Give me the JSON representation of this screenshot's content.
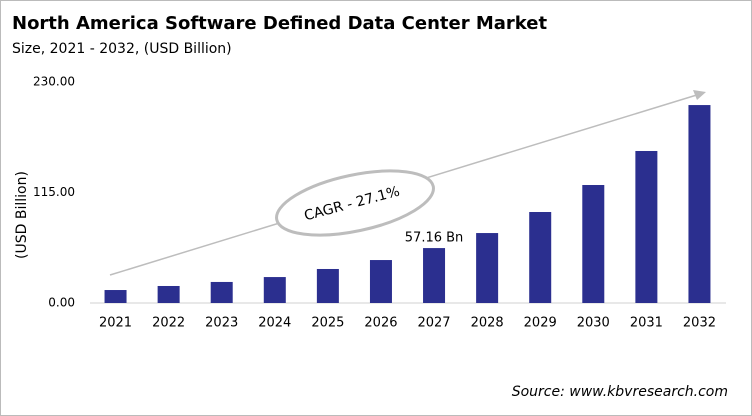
{
  "chart_data": {
    "type": "bar",
    "title": "North America Software Defined Data Center Market",
    "subtitle": "Size, 2021 - 2032, (USD Billion)",
    "y_label": "(USD Billion)",
    "annotation": "CAGR - 27.1%",
    "source": "Source: www.kbvresearch.com",
    "categories": [
      "2021",
      "2022",
      "2023",
      "2024",
      "2025",
      "2026",
      "2027",
      "2028",
      "2029",
      "2030",
      "2031",
      "2032"
    ],
    "values": [
      13.5,
      17.7,
      21.9,
      27.0,
      35.4,
      44.7,
      57.16,
      72.8,
      94.7,
      122.8,
      158.2,
      206.0
    ],
    "value_labels": [
      null,
      null,
      null,
      null,
      null,
      null,
      "57.16 Bn",
      null,
      null,
      null,
      null,
      null
    ],
    "color": "#2b2f8f",
    "ylim": [
      0,
      230
    ],
    "yticks": [
      {
        "value": 0,
        "label": "0.00"
      },
      {
        "value": 115,
        "label": "115.00"
      },
      {
        "value": 230,
        "label": "230.00"
      }
    ],
    "grid": false
  }
}
